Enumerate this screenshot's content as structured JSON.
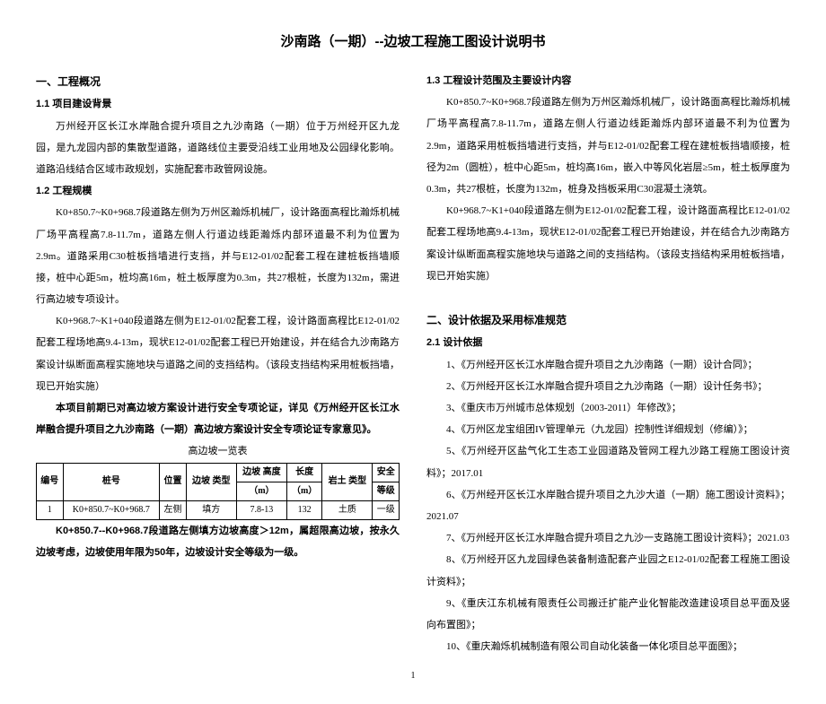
{
  "title": "沙南路（一期）--边坡工程施工图设计说明书",
  "left": {
    "sec1": "一、工程概况",
    "sec11": "1.1 项目建设背景",
    "p11": "万州经开区长江水岸融合提升项目之九沙南路（一期）位于万州经开区九龙园，是九龙园内部的集散型道路，道路线位主要受沿线工业用地及公园绿化影响。道路沿线结合区域市政规划，实施配套市政管网设施。",
    "sec12": "1.2 工程规模",
    "p12a": "K0+850.7~K0+968.7段道路左侧为万州区瀚烁机械厂，设计路面高程比瀚烁机械厂场平高程高7.8-11.7m，道路左侧人行道边线距瀚烁内部环道最不利为位置为2.9m。道路采用C30桩板挡墙进行支挡，并与E12-01/02配套工程在建桩板挡墙顺接，桩中心距5m，桩均高16m，桩土板厚度为0.3m，共27根桩，长度为132m，需进行高边坡专项设计。",
    "p12b": "K0+968.7~K1+040段道路左侧为E12-01/02配套工程，设计路面高程比E12-01/02配套工程场地高9.4-13m，现状E12-01/02配套工程已开始建设，并在结合九沙南路方案设计纵断面高程实施地块与道路之间的支挡结构。（该段支挡结构采用桩板挡墙，现已开始实施）",
    "p12c": "本项目前期已对高边坡方案设计进行安全专项论证，详见《万州经开区长江水岸融合提升项目之九沙南路（一期）高边坡方案设计安全专项论证专家意见》。",
    "tabletitle": "高边坡一览表",
    "table": {
      "headers": {
        "c1": "编号",
        "c2": "桩号",
        "c3": "位置",
        "c4": "边坡\n类型",
        "c5": "边坡\n高度",
        "c5u": "（m）",
        "c6": "长度",
        "c6u": "（m）",
        "c7": "岩土\n类型",
        "c8": "安全",
        "c8u": "等级"
      },
      "row": {
        "c1": "1",
        "c2": "K0+850.7~K0+968.7",
        "c3": "左侧",
        "c4": "填方",
        "c5": "7.8-13",
        "c6": "132",
        "c7": "土质",
        "c8": "一级"
      }
    },
    "pfoot": "K0+850.7--K0+968.7段道路左侧填方边坡高度＞12m，属超限高边坡，按永久边坡考虑，边坡使用年限为50年，边坡设计安全等级为一级。"
  },
  "right": {
    "sec13": "1.3 工程设计范围及主要设计内容",
    "p13a": "K0+850.7~K0+968.7段道路左侧为万州区瀚烁机械厂，设计路面高程比瀚烁机械厂场平高程高7.8-11.7m，道路左侧人行道边线距瀚烁内部环道最不利为位置为2.9m，道路采用桩板挡墙进行支挡，并与E12-01/02配套工程在建桩板挡墙顺接，桩径为2m（圆桩），桩中心距5m，桩均高16m，嵌入中等风化岩层≥5m，桩土板厚度为0.3m，共27根桩，长度为132m，桩身及挡板采用C30混凝土浇筑。",
    "p13b": "K0+968.7~K1+040段道路左侧为E12-01/02配套工程，设计路面高程比E12-01/02配套工程场地高9.4-13m，现状E12-01/02配套工程已开始建设，并在结合九沙南路方案设计纵断面高程实施地块与道路之间的支挡结构。（该段支挡结构采用桩板挡墙，现已开始实施）",
    "sec2": "二、设计依据及采用标准规范",
    "sec21": "2.1 设计依据",
    "refs": [
      "1、《万州经开区长江水岸融合提升项目之九沙南路（一期）设计合同》；",
      "2、《万州经开区长江水岸融合提升项目之九沙南路（一期）设计任务书》；",
      "3、《重庆市万州城市总体规划（2003-2011）年修改》；",
      "4、《万州区龙宝组团IV管理单元（九龙园）控制性详细规划（修编）》；",
      "5、《万州经开区盐气化工生态工业园道路及管网工程九沙路工程施工图设计资料》；2017.01",
      "6、《万州经开区长江水岸融合提升项目之九沙大道（一期）施工图设计资料》；2021.07",
      "7、《万州经开区长江水岸融合提升项目之九沙一支路施工图设计资料》；2021.03",
      "8、《万州经开区九龙园绿色装备制造配套产业园之E12-01/02配套工程施工图设计资料》；",
      "9、《重庆江东机械有限责任公司搬迁扩能产业化智能改造建设项目总平面及竖向布置图》；",
      "10、《重庆瀚烁机械制造有限公司自动化装备一体化项目总平面图》；"
    ]
  },
  "pagenum": "1"
}
